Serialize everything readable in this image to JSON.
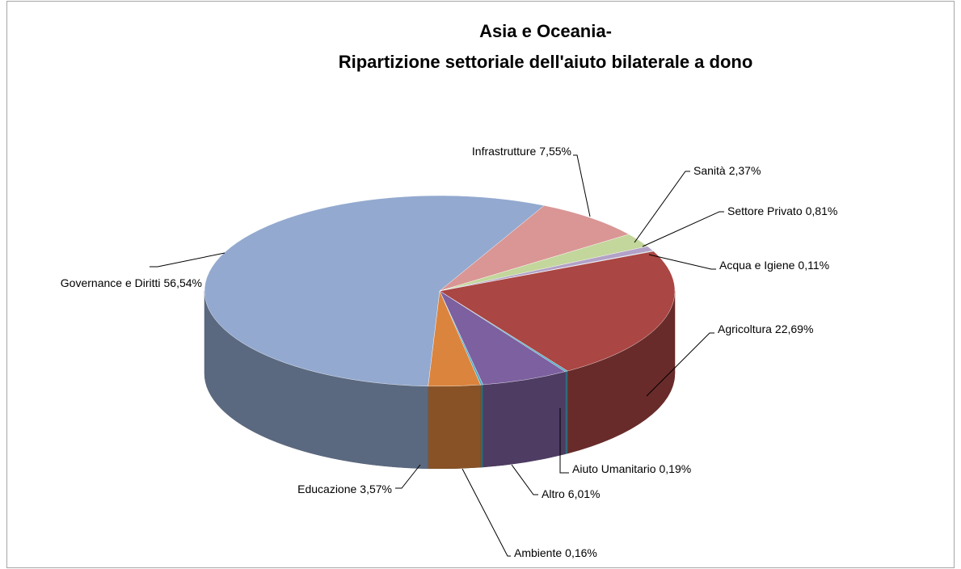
{
  "chart_data": {
    "type": "pie",
    "title": [
      "Asia e Oceania-",
      "Ripartizione settoriale dell'aiuto bilaterale a dono"
    ],
    "categories": [
      "Acqua e Igiene",
      "Agricoltura",
      "Aiuto Umanitario",
      "Altro",
      "Ambiente",
      "Educazione",
      "Governance e Diritti",
      "Infrastrutture",
      "Sanità",
      "Settore Privato"
    ],
    "values": [
      0.11,
      22.69,
      0.19,
      6.01,
      0.16,
      3.57,
      56.54,
      7.55,
      2.37,
      0.81
    ],
    "value_labels": [
      "0,11%",
      "22,69%",
      "0,19%",
      "6,01%",
      "0,16%",
      "3,57%",
      "56,54%",
      "7,55%",
      "2,37%",
      "0,81%"
    ],
    "colors": [
      "#93cddd",
      "#aa4643",
      "#4bacc6",
      "#7d60a0",
      "#4bacc6",
      "#db843d",
      "#93a9cf",
      "#d99694",
      "#c3d69b",
      "#b3a2c7"
    ]
  }
}
